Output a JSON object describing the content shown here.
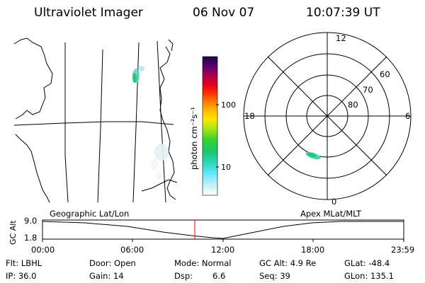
{
  "header": {
    "title": "Ultraviolet Imager",
    "date": "06 Nov 07",
    "time": "10:07:39 UT"
  },
  "colorbar": {
    "unit_label": "photon cm⁻²s⁻¹",
    "ticks": [
      "100",
      "10"
    ]
  },
  "polar_plot": {
    "mlt_labels": {
      "top": "12",
      "left": "18",
      "right": "6",
      "bottom": "0"
    },
    "lat_labels": [
      "60",
      "70",
      "80"
    ]
  },
  "timeline": {
    "left_title": "Geographic Lat/Lon",
    "right_title": "Apex MLat/MLT",
    "ylabel": "GC Alt",
    "ytick_top": "9.0",
    "ytick_bottom": "1.8",
    "xticks": [
      "00:00",
      "06:00",
      "12:00",
      "18:00",
      "23:59"
    ],
    "current_time_color": "#ff0000"
  },
  "info": {
    "flt": "Flt: LBHL",
    "ip": "IP: 36.0",
    "door": "Door: Open",
    "gain": "Gain: 14",
    "mode": "Mode: Normal",
    "dsp_label": "Dsp:",
    "dsp_value": "6.6",
    "gc_alt": "GC Alt: 4.9 Re",
    "seq": "Seq: 39",
    "glat": "GLat: -48.4",
    "glon": "GLon: 135.1"
  }
}
